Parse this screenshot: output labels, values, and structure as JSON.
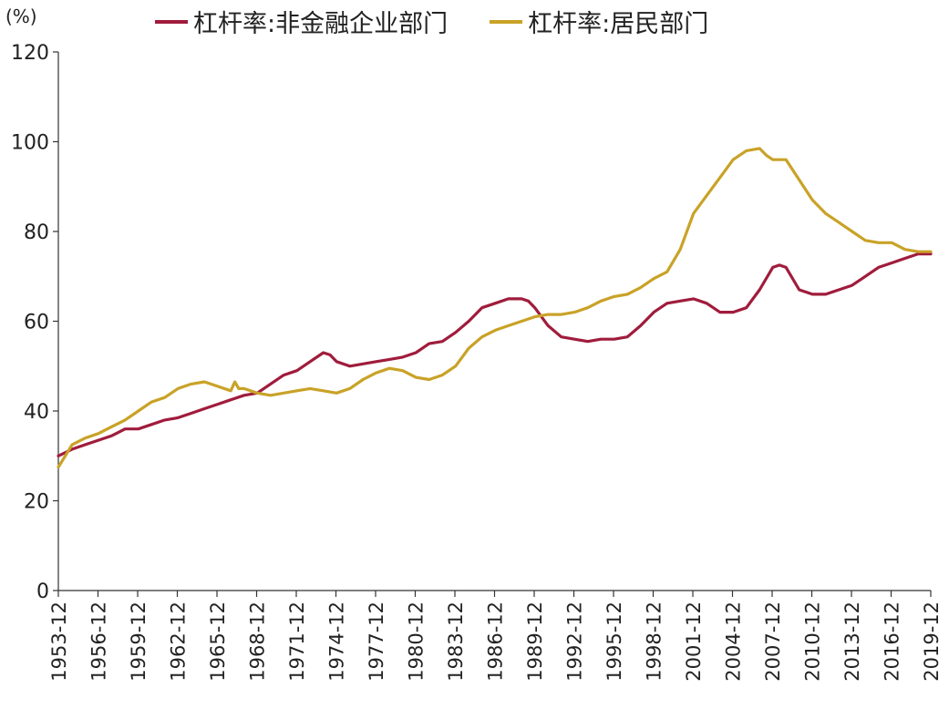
{
  "unit_label": "(%)",
  "colors": {
    "corporate": "#a01c3c",
    "household": "#c9a227",
    "axis": "#333333"
  },
  "chart_data": {
    "type": "line",
    "title": "",
    "xlabel": "",
    "ylabel": "(%)",
    "ylim": [
      0,
      120
    ],
    "yticks": [
      0,
      20,
      40,
      60,
      80,
      100,
      120
    ],
    "xlim": [
      1953.95,
      2019.95
    ],
    "xticks": [
      "1953-12",
      "1956-12",
      "1959-12",
      "1962-12",
      "1965-12",
      "1968-12",
      "1971-12",
      "1974-12",
      "1977-12",
      "1980-12",
      "1983-12",
      "1986-12",
      "1989-12",
      "1992-12",
      "1995-12",
      "1998-12",
      "2001-12",
      "2004-12",
      "2007-12",
      "2010-12",
      "2013-12",
      "2016-12",
      "2019-12"
    ],
    "grid": false,
    "legend_position": "top",
    "series": [
      {
        "name": "杠杆率:非金融企业部门",
        "color": "#a01c3c",
        "x": [
          1953.95,
          1955,
          1956,
          1957,
          1958,
          1959,
          1960,
          1961,
          1962,
          1963,
          1964,
          1965,
          1966,
          1967,
          1968,
          1969,
          1970,
          1971,
          1972,
          1973,
          1974,
          1974.5,
          1975,
          1976,
          1977,
          1978,
          1979,
          1980,
          1981,
          1982,
          1983,
          1984,
          1985,
          1986,
          1987,
          1988,
          1989,
          1989.5,
          1990,
          1991,
          1992,
          1993,
          1994,
          1995,
          1996,
          1997,
          1998,
          1999,
          2000,
          2001,
          2002,
          2003,
          2004,
          2005,
          2006,
          2007,
          2008,
          2008.5,
          2009,
          2010,
          2011,
          2012,
          2013,
          2014,
          2015,
          2016,
          2017,
          2018,
          2019,
          2019.95
        ],
        "values": [
          30,
          31.5,
          32.5,
          33.5,
          34.5,
          36,
          36,
          37,
          38,
          38.5,
          39.5,
          40.5,
          41.5,
          42.5,
          43.5,
          44,
          46,
          48,
          49,
          51,
          53,
          52.5,
          51,
          50,
          50.5,
          51,
          51.5,
          52,
          53,
          55,
          55.5,
          57.5,
          60,
          63,
          64,
          65,
          65,
          64.5,
          63,
          59,
          56.5,
          56,
          55.5,
          56,
          56,
          56.5,
          59,
          62,
          64,
          64.5,
          65,
          64,
          62,
          62,
          63,
          67,
          72,
          72.5,
          72,
          67,
          66,
          66,
          67,
          68,
          70,
          72,
          73,
          74,
          75,
          75
        ]
      },
      {
        "name": "杠杆率:居民部门",
        "color": "#c9a227",
        "x": [
          1953.95,
          1955,
          1956,
          1957,
          1958,
          1959,
          1960,
          1961,
          1962,
          1963,
          1964,
          1965,
          1966,
          1967,
          1967.3,
          1967.6,
          1968,
          1969,
          1970,
          1971,
          1972,
          1973,
          1974,
          1975,
          1976,
          1977,
          1978,
          1979,
          1980,
          1981,
          1982,
          1983,
          1984,
          1985,
          1986,
          1987,
          1988,
          1989,
          1990,
          1991,
          1992,
          1993,
          1994,
          1995,
          1996,
          1997,
          1998,
          1999,
          2000,
          2001,
          2002,
          2003,
          2004,
          2005,
          2006,
          2007,
          2007.5,
          2008,
          2009,
          2010,
          2011,
          2012,
          2013,
          2014,
          2015,
          2016,
          2017,
          2018,
          2019,
          2019.95
        ],
        "values": [
          27.5,
          32.5,
          34,
          35,
          36.5,
          38,
          40,
          42,
          43,
          45,
          46,
          46.5,
          45.5,
          44.5,
          46.5,
          45,
          45,
          44,
          43.5,
          44,
          44.5,
          45,
          44.5,
          44,
          45,
          47,
          48.5,
          49.5,
          49,
          47.5,
          47,
          48,
          50,
          54,
          56.5,
          58,
          59,
          60,
          61,
          61.5,
          61.5,
          62,
          63,
          64.5,
          65.5,
          66,
          67.5,
          69.5,
          71,
          76,
          84,
          88,
          92,
          96,
          98,
          98.5,
          97,
          96,
          96,
          91.5,
          87,
          84,
          82,
          80,
          78,
          77.5,
          77.5,
          76,
          75.5,
          75.5
        ]
      }
    ]
  }
}
